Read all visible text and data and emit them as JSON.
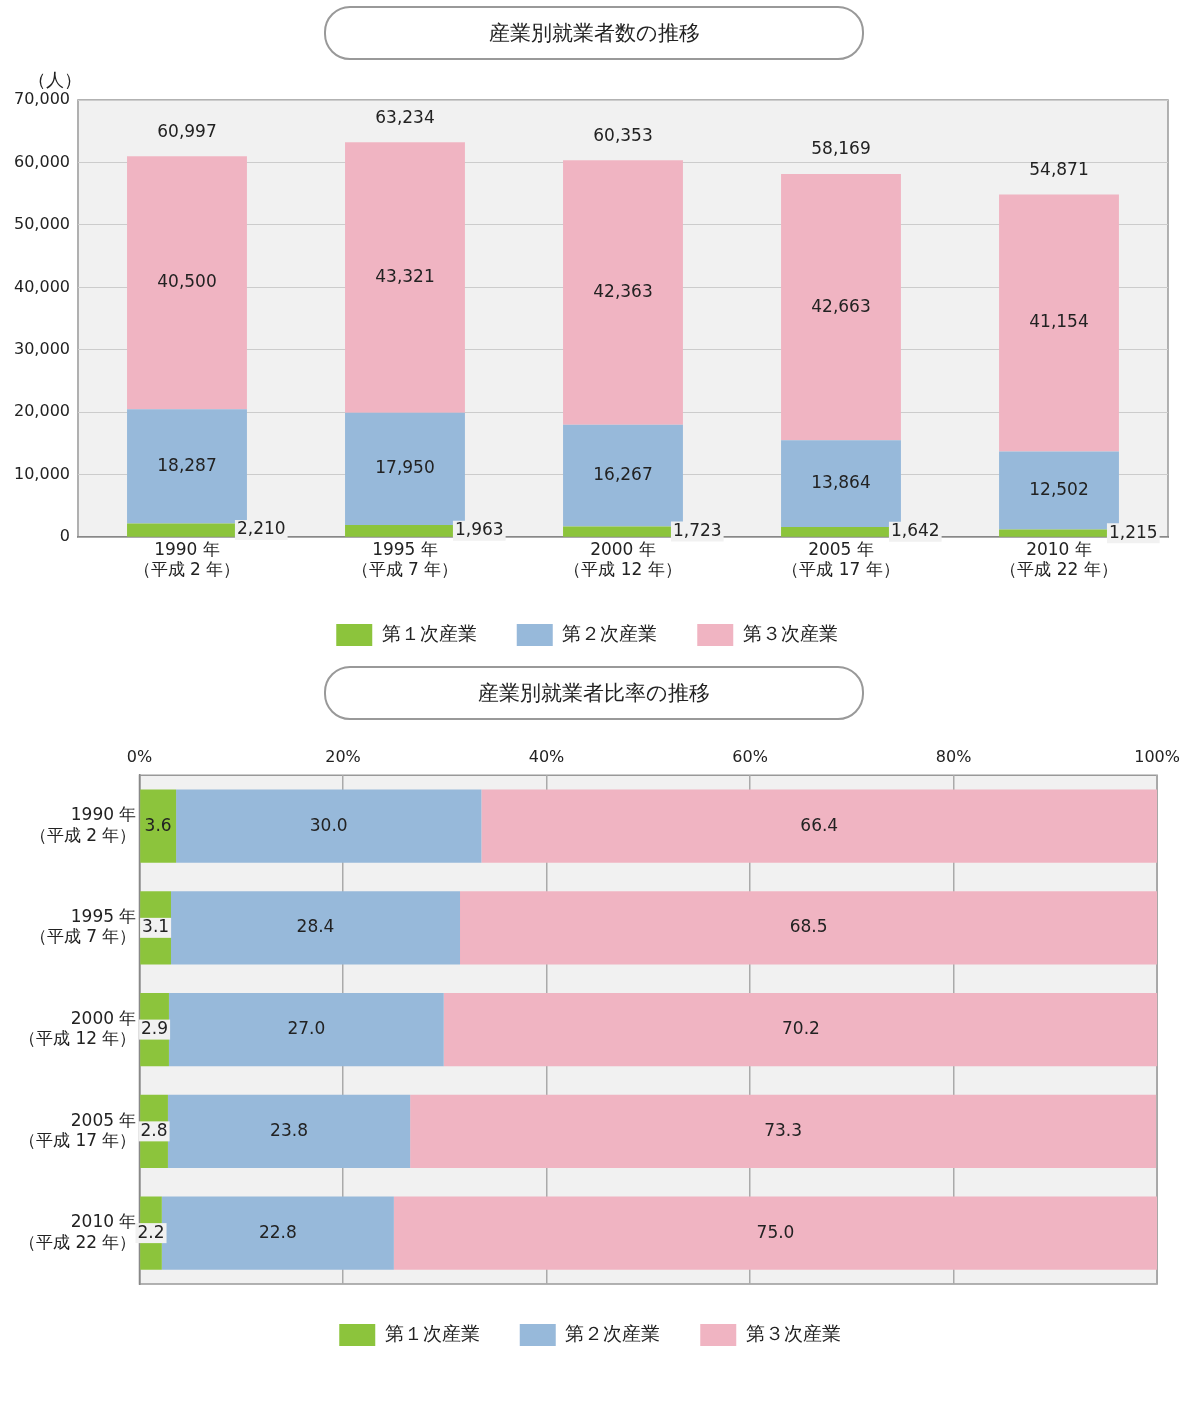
{
  "chart_data": [
    {
      "type": "bar",
      "title": "産業別就業者数の推移",
      "ylabel": "（人）",
      "stacked": true,
      "categories": [
        "1990 年（平成 2 年）",
        "1995 年（平成 7 年）",
        "2000 年（平成 12 年）",
        "2005 年（平成 17 年）",
        "2010 年（平成 22 年）"
      ],
      "series": [
        {
          "name": "第１次産業",
          "color": "#8cc43c",
          "values": [
            2210,
            1963,
            1723,
            1642,
            1215
          ],
          "value_labels": [
            "2,210",
            "1,963",
            "1,723",
            "1,642",
            "1,215"
          ]
        },
        {
          "name": "第２次産業",
          "color": "#97b9da",
          "values": [
            18287,
            17950,
            16267,
            13864,
            12502
          ],
          "value_labels": [
            "18,287",
            "17,950",
            "16,267",
            "13,864",
            "12,502"
          ]
        },
        {
          "name": "第３次産業",
          "color": "#f0b4c2",
          "values": [
            40500,
            43321,
            42363,
            42663,
            41154
          ],
          "value_labels": [
            "40,500",
            "43,321",
            "42,363",
            "42,663",
            "41,154"
          ]
        }
      ],
      "totals": [
        "60,997",
        "63,234",
        "60,353",
        "58,169",
        "54,871"
      ],
      "ylim": [
        0,
        70000
      ],
      "yticks": [
        {
          "value": 0,
          "label": "0"
        },
        {
          "value": 10000,
          "label": "10,000"
        },
        {
          "value": 20000,
          "label": "20,000"
        },
        {
          "value": 30000,
          "label": "30,000"
        },
        {
          "value": 40000,
          "label": "40,000"
        },
        {
          "value": 50000,
          "label": "50,000"
        },
        {
          "value": 60000,
          "label": "60,000"
        },
        {
          "value": 70000,
          "label": "70,000"
        }
      ],
      "grid": "y",
      "legend": "bottom"
    },
    {
      "type": "bar",
      "title": "産業別就業者比率の推移",
      "stacked": true,
      "orientation": "horizontal",
      "categories": [
        "1990 年（平成 2 年）",
        "1995 年（平成 7 年）",
        "2000 年（平成 12 年）",
        "2005 年（平成 17 年）",
        "2010 年（平成 22 年）"
      ],
      "series": [
        {
          "name": "第１次産業",
          "color": "#8cc43c",
          "values": [
            3.6,
            3.1,
            2.9,
            2.8,
            2.2
          ],
          "value_labels": [
            "3.6",
            "3.1",
            "2.9",
            "2.8",
            "2.2"
          ]
        },
        {
          "name": "第２次産業",
          "color": "#97b9da",
          "values": [
            30.0,
            28.4,
            27.0,
            23.8,
            22.8
          ],
          "value_labels": [
            "30.0",
            "28.4",
            "27.0",
            "23.8",
            "22.8"
          ]
        },
        {
          "name": "第３次産業",
          "color": "#f0b4c2",
          "values": [
            66.4,
            68.5,
            70.2,
            73.3,
            75.0
          ],
          "value_labels": [
            "66.4",
            "68.5",
            "70.2",
            "73.3",
            "75.0"
          ]
        }
      ],
      "xlim": [
        0,
        100
      ],
      "xticks": [
        {
          "value": 0,
          "label": "0%"
        },
        {
          "value": 20,
          "label": "20%"
        },
        {
          "value": 40,
          "label": "40%"
        },
        {
          "value": 60,
          "label": "60%"
        },
        {
          "value": 80,
          "label": "80%"
        },
        {
          "value": 100,
          "label": "100%"
        }
      ],
      "grid": "x",
      "legend": "bottom"
    }
  ]
}
